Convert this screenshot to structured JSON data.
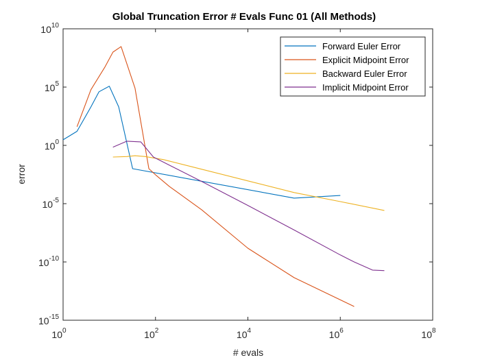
{
  "chart_data": {
    "type": "line",
    "title": "Global Truncation Error # Evals Func 01 (All Methods)",
    "xlabel": "# evals",
    "ylabel": "error",
    "xscale": "log",
    "yscale": "log",
    "xlim": [
      1,
      100000000
    ],
    "ylim": [
      1e-15,
      10000000000.0
    ],
    "x_tick_exponents": [
      "0",
      "2",
      "4",
      "6",
      "8"
    ],
    "y_tick_exponents": [
      "10",
      "5",
      "0",
      "-5",
      "-10",
      "-15"
    ],
    "x_tick_values": [
      1,
      100,
      10000,
      1000000,
      100000000
    ],
    "y_tick_values": [
      10000000000.0,
      100000.0,
      1,
      1e-05,
      1e-10,
      1e-15
    ],
    "tick_base": "10",
    "y_zero_label": "10",
    "y_zero_exp": "0",
    "legend_position": "top-right",
    "grid": false,
    "series": [
      {
        "name": "Forward Euler Error",
        "color": "#0072BD",
        "points": [
          [
            1,
            3
          ],
          [
            2,
            16
          ],
          [
            4,
            2000
          ],
          [
            6,
            40000
          ],
          [
            10,
            120000
          ],
          [
            16,
            2000
          ],
          [
            32,
            0.01
          ],
          [
            100000,
            3e-05
          ],
          [
            1000000,
            5e-05
          ]
        ]
      },
      {
        "name": "Explicit Midpoint Error",
        "color": "#D95319",
        "points": [
          [
            2,
            40
          ],
          [
            4,
            60000
          ],
          [
            8,
            5000000
          ],
          [
            12,
            100000000
          ],
          [
            18,
            300000000
          ],
          [
            36,
            80000
          ],
          [
            72,
            0.01
          ],
          [
            100,
            0.003
          ],
          [
            200,
            0.0003
          ],
          [
            1000,
            3e-06
          ],
          [
            10000,
            1.5e-09
          ],
          [
            100000,
            4.5e-12
          ],
          [
            2000000,
            1.5e-14
          ]
        ]
      },
      {
        "name": "Backward Euler Error",
        "color": "#EDB120",
        "points": [
          [
            12,
            0.1
          ],
          [
            24,
            0.11
          ],
          [
            36,
            0.13
          ],
          [
            60,
            0.11
          ],
          [
            150,
            0.06
          ],
          [
            1000,
            0.009
          ],
          [
            10000,
            0.0009
          ],
          [
            100000,
            9e-05
          ],
          [
            1000000,
            1.5e-05
          ],
          [
            9000000,
            2.6e-06
          ]
        ]
      },
      {
        "name": "Implicit Midpoint Error",
        "color": "#7E2F8E",
        "points": [
          [
            12,
            0.7
          ],
          [
            24,
            2.3
          ],
          [
            48,
            2
          ],
          [
            90,
            0.1
          ],
          [
            200,
            0.02
          ],
          [
            1000,
            0.0008
          ],
          [
            10000,
            7e-06
          ],
          [
            100000,
            5.5e-08
          ],
          [
            1000000,
            4e-10
          ],
          [
            2000000,
            1e-10
          ],
          [
            5000000,
            2e-11
          ],
          [
            9000000,
            1.8e-11
          ]
        ]
      }
    ]
  }
}
